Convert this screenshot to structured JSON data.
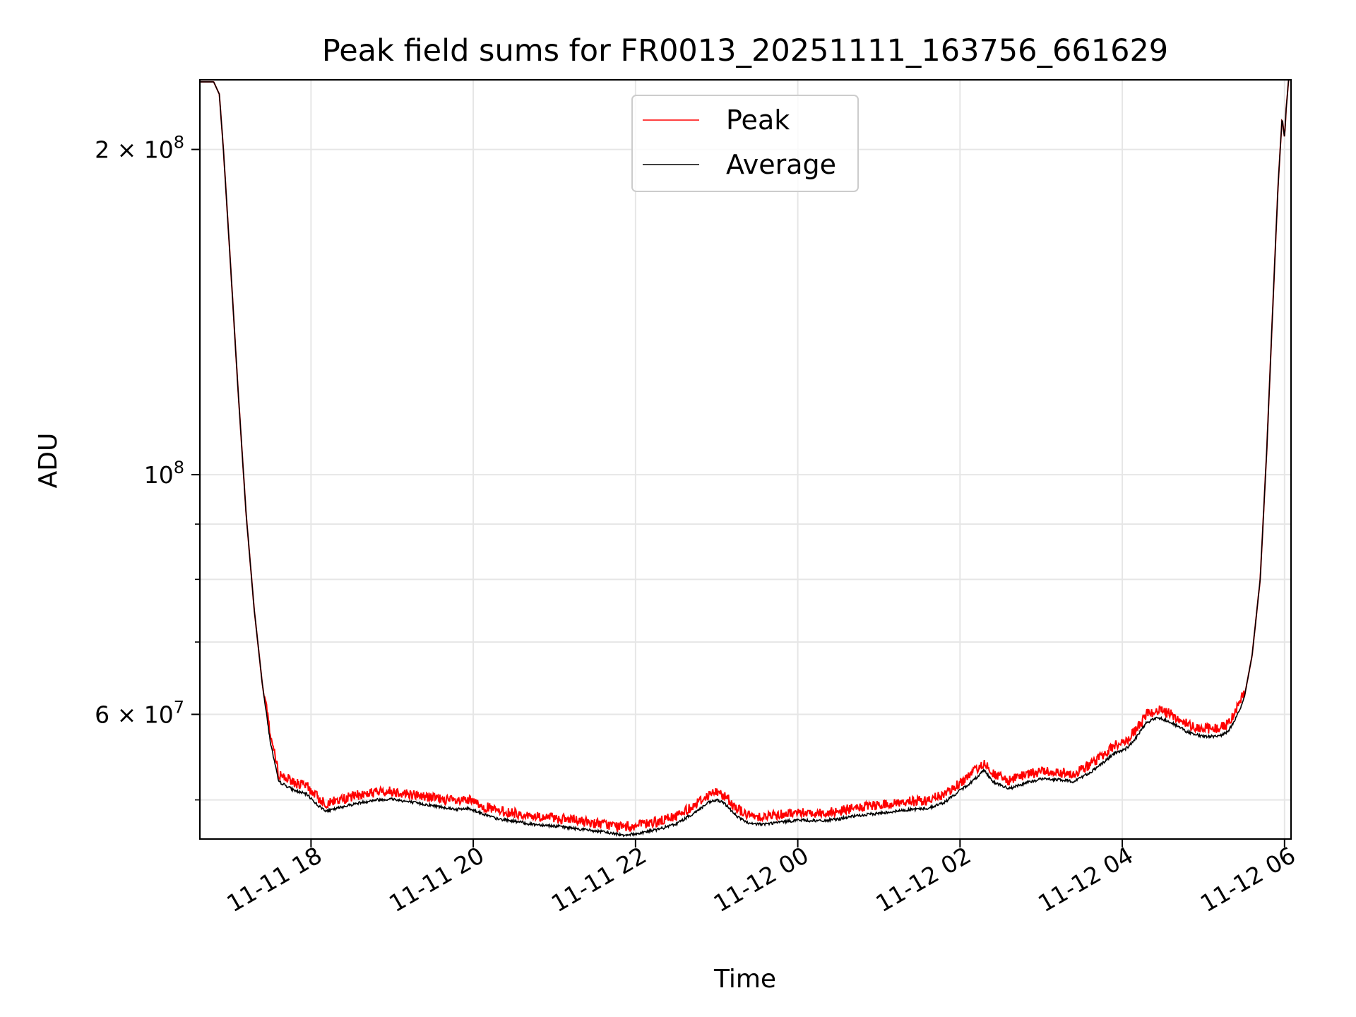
{
  "chart_data": {
    "type": "line",
    "title": "Peak field sums for FR0013_20251111_163756_661629",
    "xlabel": "Time",
    "ylabel": "ADU",
    "yscale": "log",
    "grid": true,
    "legend_position": "top-center",
    "xlim_hours": [
      16.63,
      30.08
    ],
    "ylim": [
      46000000,
      232000000
    ],
    "x_ticks": [
      {
        "label": "11-11 18",
        "hour": 18
      },
      {
        "label": "11-11 20",
        "hour": 20
      },
      {
        "label": "11-11 22",
        "hour": 22
      },
      {
        "label": "11-12 00",
        "hour": 24
      },
      {
        "label": "11-12 02",
        "hour": 26
      },
      {
        "label": "11-12 04",
        "hour": 28
      },
      {
        "label": "11-12 06",
        "hour": 30
      }
    ],
    "y_major_ticks": [
      {
        "value": 200000000,
        "mantissa": "2",
        "exponent": "8"
      },
      {
        "value": 100000000,
        "mantissa": "",
        "exponent": "8"
      },
      {
        "value": 60000000,
        "mantissa": "6",
        "exponent": "7"
      }
    ],
    "y_minor_ticks": [
      50000000,
      70000000,
      80000000,
      90000000
    ],
    "series": [
      {
        "name": "Peak",
        "color": "#ff0000"
      },
      {
        "name": "Average",
        "color": "#000000"
      }
    ],
    "average_points": [
      [
        16.63,
        231000000
      ],
      [
        16.8,
        231000000
      ],
      [
        16.87,
        225000000
      ],
      [
        16.92,
        200000000
      ],
      [
        17.0,
        160000000
      ],
      [
        17.1,
        120000000
      ],
      [
        17.2,
        92000000
      ],
      [
        17.3,
        75000000
      ],
      [
        17.4,
        64000000
      ],
      [
        17.5,
        56500000
      ],
      [
        17.6,
        52000000
      ],
      [
        17.8,
        51000000
      ],
      [
        17.95,
        50600000
      ],
      [
        18.1,
        49300000
      ],
      [
        18.2,
        48800000
      ],
      [
        18.4,
        49300000
      ],
      [
        18.6,
        49700000
      ],
      [
        18.8,
        50000000
      ],
      [
        19.0,
        50100000
      ],
      [
        19.2,
        49800000
      ],
      [
        19.5,
        49400000
      ],
      [
        19.8,
        49000000
      ],
      [
        19.95,
        49100000
      ],
      [
        20.1,
        48600000
      ],
      [
        20.3,
        48000000
      ],
      [
        20.5,
        47800000
      ],
      [
        20.7,
        47500000
      ],
      [
        21.0,
        47300000
      ],
      [
        21.3,
        47000000
      ],
      [
        21.6,
        46700000
      ],
      [
        21.85,
        46400000
      ],
      [
        22.0,
        46500000
      ],
      [
        22.3,
        47000000
      ],
      [
        22.5,
        47500000
      ],
      [
        22.7,
        48500000
      ],
      [
        22.9,
        49700000
      ],
      [
        23.0,
        50000000
      ],
      [
        23.1,
        49600000
      ],
      [
        23.25,
        48300000
      ],
      [
        23.4,
        47500000
      ],
      [
        23.6,
        47500000
      ],
      [
        23.8,
        47700000
      ],
      [
        24.0,
        47900000
      ],
      [
        24.3,
        47800000
      ],
      [
        24.5,
        48000000
      ],
      [
        24.7,
        48300000
      ],
      [
        25.0,
        48600000
      ],
      [
        25.2,
        48800000
      ],
      [
        25.4,
        49000000
      ],
      [
        25.6,
        49100000
      ],
      [
        25.8,
        49700000
      ],
      [
        26.0,
        51000000
      ],
      [
        26.15,
        52000000
      ],
      [
        26.3,
        53300000
      ],
      [
        26.4,
        52000000
      ],
      [
        26.5,
        51600000
      ],
      [
        26.6,
        51200000
      ],
      [
        26.8,
        51800000
      ],
      [
        27.0,
        52300000
      ],
      [
        27.2,
        52200000
      ],
      [
        27.4,
        52000000
      ],
      [
        27.6,
        53000000
      ],
      [
        27.75,
        54000000
      ],
      [
        27.9,
        55200000
      ],
      [
        28.05,
        55800000
      ],
      [
        28.15,
        56800000
      ],
      [
        28.3,
        59000000
      ],
      [
        28.45,
        59600000
      ],
      [
        28.6,
        59000000
      ],
      [
        28.8,
        57800000
      ],
      [
        29.0,
        57200000
      ],
      [
        29.2,
        57300000
      ],
      [
        29.3,
        57800000
      ],
      [
        29.4,
        59500000
      ],
      [
        29.5,
        62000000
      ],
      [
        29.6,
        68000000
      ],
      [
        29.7,
        80000000
      ],
      [
        29.78,
        105000000
      ],
      [
        29.85,
        140000000
      ],
      [
        29.92,
        185000000
      ],
      [
        29.97,
        214000000
      ],
      [
        30.0,
        205000000
      ],
      [
        30.02,
        218000000
      ],
      [
        30.05,
        232000000
      ],
      [
        30.08,
        232000000
      ]
    ]
  },
  "legend": {
    "items": [
      {
        "label": "Peak",
        "color": "#ff0000"
      },
      {
        "label": "Average",
        "color": "#000000"
      }
    ]
  }
}
